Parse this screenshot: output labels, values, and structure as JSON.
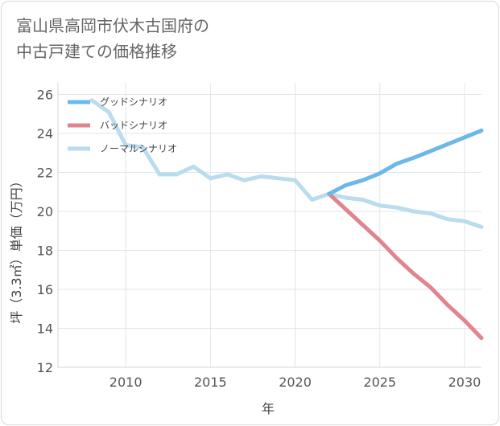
{
  "title_lines": [
    "富山県高岡市伏木古国府の",
    "中古戸建ての価格推移"
  ],
  "chart_data": {
    "type": "line",
    "xlabel": "年",
    "ylabel": "坪（3.3㎡）単価（万円）",
    "xlim": [
      2006,
      2031
    ],
    "ylim": [
      12,
      26.6
    ],
    "x_ticks": [
      2010,
      2015,
      2020,
      2025,
      2030
    ],
    "y_ticks": [
      12,
      14,
      16,
      18,
      20,
      22,
      24,
      26
    ],
    "grid": true,
    "legend_position": "top-left",
    "series": [
      {
        "name": "ノーマルシナリオ",
        "color": "#b9dcee",
        "x": [
          2008,
          2009,
          2010,
          2011,
          2012,
          2013,
          2014,
          2015,
          2016,
          2017,
          2018,
          2019,
          2020,
          2021,
          2022,
          2023,
          2024,
          2025,
          2026,
          2027,
          2028,
          2029,
          2030,
          2031
        ],
        "y": [
          25.7,
          25.1,
          23.4,
          23.3,
          21.9,
          21.9,
          22.3,
          21.7,
          21.9,
          21.6,
          21.8,
          21.7,
          21.6,
          20.6,
          20.9,
          20.7,
          20.6,
          20.3,
          20.2,
          20.0,
          19.9,
          19.6,
          19.5,
          19.2
        ]
      },
      {
        "name": "バッドシナリオ",
        "color": "#e0858d",
        "x": [
          2022,
          2023,
          2024,
          2025,
          2026,
          2027,
          2028,
          2029,
          2030,
          2031
        ],
        "y": [
          20.9,
          20.1,
          19.3,
          18.5,
          17.6,
          16.8,
          16.1,
          15.2,
          14.4,
          13.5
        ]
      },
      {
        "name": "グッドシナリオ",
        "color": "#6cb8e8",
        "x": [
          2022,
          2023,
          2024,
          2025,
          2026,
          2027,
          2028,
          2029,
          2030,
          2031
        ],
        "y": [
          20.9,
          21.35,
          21.6,
          21.95,
          22.45,
          22.75,
          23.1,
          23.45,
          23.8,
          24.15
        ]
      }
    ],
    "legend": [
      {
        "name": "グッドシナリオ",
        "color": "#6cb8e8"
      },
      {
        "name": "バッドシナリオ",
        "color": "#e0858d"
      },
      {
        "name": "ノーマルシナリオ",
        "color": "#b9dcee"
      }
    ]
  }
}
